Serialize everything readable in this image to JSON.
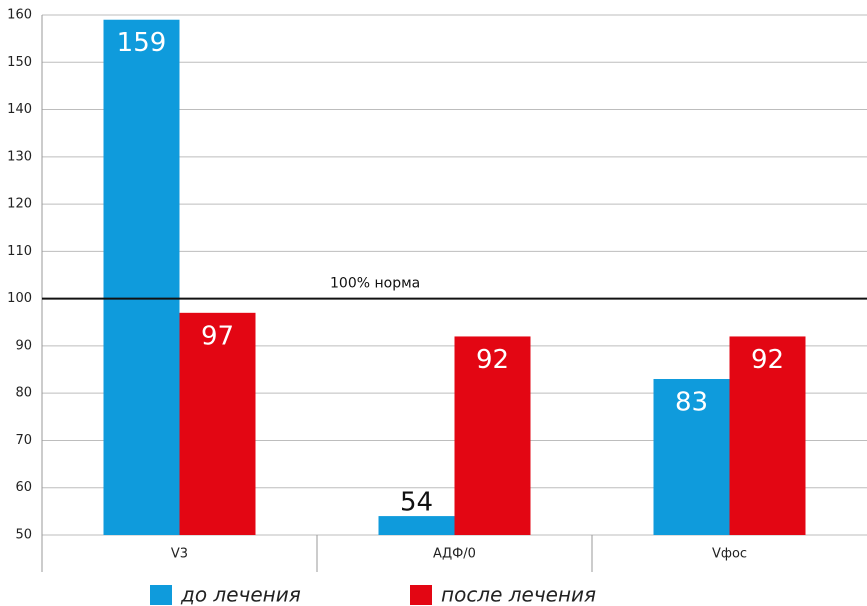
{
  "chart_data": {
    "type": "bar",
    "categories": [
      "V3",
      "АДФ/0",
      "Vфос"
    ],
    "series": [
      {
        "name": "до лечения",
        "color": "#0f9bdc",
        "values": [
          159,
          54,
          83
        ]
      },
      {
        "name": "после лечения",
        "color": "#e30613",
        "values": [
          97,
          92,
          92
        ]
      }
    ],
    "ylim": [
      50,
      160
    ],
    "yticks": [
      50,
      60,
      70,
      80,
      90,
      100,
      110,
      120,
      130,
      140,
      150,
      160
    ],
    "grid": true,
    "reference_line": {
      "value": 100,
      "label": "100% норма"
    },
    "legend": "bottom"
  }
}
